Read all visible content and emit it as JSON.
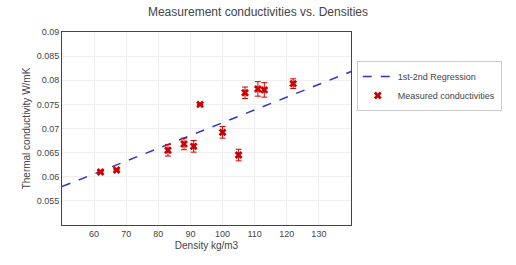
{
  "chart_data": {
    "type": "scatter",
    "title": "Measurement conductivities vs. Densities",
    "xlabel": "Density kg/m3",
    "ylabel": "Thermal conductivity W/mK",
    "xlim": [
      50,
      140
    ],
    "ylim": [
      0.05,
      0.09
    ],
    "xticks": [
      60,
      70,
      80,
      90,
      100,
      110,
      120,
      130
    ],
    "yticks": [
      0.055,
      0.06,
      0.065,
      0.07,
      0.075,
      0.08,
      0.085,
      0.09
    ],
    "grid": true,
    "legend": "right",
    "series": [
      {
        "name": "1st-2nd Regression",
        "type": "line",
        "color": "#3333cc",
        "line_style": "dashed",
        "x": [
          50,
          140
        ],
        "values": [
          0.05795,
          0.0818
        ]
      },
      {
        "name": "Measured conductivities",
        "type": "scatter",
        "color": "#cc0000",
        "marker": "x",
        "x": [
          62,
          67,
          83,
          88,
          91,
          93,
          100,
          105,
          107,
          111,
          113,
          122
        ],
        "values": [
          0.061,
          0.0614,
          0.0655,
          0.0668,
          0.0663,
          0.075,
          0.0692,
          0.0645,
          0.0774,
          0.0782,
          0.078,
          0.0793
        ],
        "errors": [
          0.0,
          0.0,
          0.0012,
          0.0012,
          0.0012,
          0.0,
          0.0012,
          0.0012,
          0.0012,
          0.0015,
          0.0015,
          0.001
        ]
      }
    ]
  }
}
